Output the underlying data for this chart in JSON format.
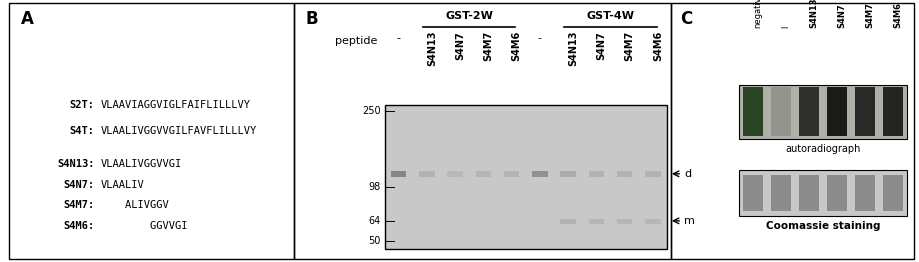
{
  "panel_A_label": "A",
  "panel_B_label": "B",
  "panel_C_label": "C",
  "sequences": [
    {
      "name": "S2T:",
      "seq": "VLAAVIAGGVIGLFAIFLILLLVY"
    },
    {
      "name": "S4T:",
      "seq": "VLAALIVGGVVGILFAVFLILLLVY"
    },
    {
      "name": "S4N13:",
      "seq": "VLAALIVGGVVGI"
    },
    {
      "name": "S4N7:",
      "seq": "VLAALIV"
    },
    {
      "name": "S4M7:",
      "seq": "    ALIVGGV"
    },
    {
      "name": "S4M6:",
      "seq": "        GGVVGI"
    }
  ],
  "gst2w_label": "GST-2W",
  "gst4w_label": "GST-4W",
  "peptide_label": "peptide",
  "lane_labels": [
    "-",
    "S4N13",
    "S4N7",
    "S4M7",
    "S4M6",
    "-",
    "S4N13",
    "S4N7",
    "S4M7",
    "S4M6"
  ],
  "mw_markers": [
    250,
    98,
    64,
    50
  ],
  "d_label": "d",
  "m_label": "m",
  "autoradiograph_label": "autoradiograph",
  "coomassie_label": "Coomassie staining",
  "panel_c_lanes": [
    "negative",
    "l",
    "S4N13",
    "S4N7",
    "S4M7",
    "S4M6"
  ]
}
